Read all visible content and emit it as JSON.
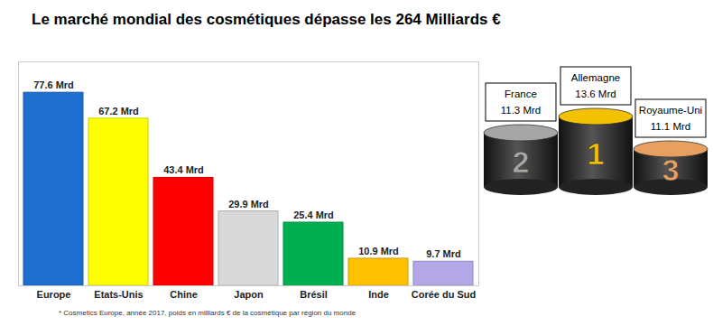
{
  "chart_data": [
    {
      "type": "bar",
      "title": "Le marché mondial des cosmétiques dépasse les 264 Milliards €",
      "caption": "* Cosmetics Europe, année 2017, poids en milliards € de la cosmétique par région du monde",
      "categories": [
        "Europe",
        "Etats-Unis",
        "Chine",
        "Japon",
        "Brésil",
        "Inde",
        "Corée du Sud"
      ],
      "values": [
        77.6,
        67.2,
        43.4,
        29.9,
        25.4,
        10.9,
        9.7
      ],
      "value_labels": [
        "77.6 Mrd",
        "67.2 Mrd",
        "43.4 Mrd",
        "29.9 Mrd",
        "25.4 Mrd",
        "10.9 Mrd",
        "9.7 Mrd"
      ],
      "colors": [
        "#1f6fd1",
        "#ffff00",
        "#ff0000",
        "#d9d9d9",
        "#00b050",
        "#ffc000",
        "#b4a7e8"
      ],
      "ylim": [
        0,
        90
      ],
      "data_labels": true,
      "tick_labels": "x"
    },
    {
      "type": "podium",
      "categories": [
        "France",
        "Allemagne",
        "Royaume-Uni"
      ],
      "ranks": [
        2,
        1,
        3
      ],
      "values": [
        11.3,
        13.6,
        11.1
      ],
      "value_labels": [
        "11.3 Mrd",
        "13.6 Mrd",
        "11.1 Mrd"
      ],
      "colors": [
        "#a6a6a6",
        "#f2c200",
        "#e8a060"
      ],
      "data_labels": true
    }
  ]
}
